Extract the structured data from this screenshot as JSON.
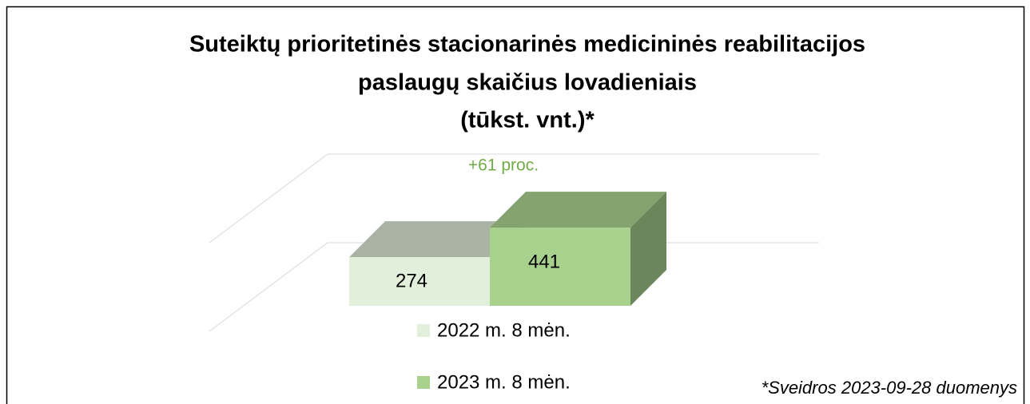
{
  "chart_data": {
    "type": "bar3d",
    "title": [
      "Suteiktų prioritetinės stacionarinės medicininės reabilitacijos",
      "paslaugų skaičius lovadieniais",
      "(tūkst. vnt.)*"
    ],
    "categories": [
      null
    ],
    "series": [
      {
        "name": "2022 m. 8 mėn.",
        "color": "#e2efda",
        "values": [
          274
        ]
      },
      {
        "name": "2023 m. 8 mėn.",
        "color": "#a9d18e",
        "values": [
          441
        ]
      }
    ],
    "ylim": [
      0,
      1000
    ],
    "yticks": [
      500,
      1000
    ],
    "grid": true,
    "legend": "bottom",
    "annotation": "+61 proc.",
    "footnote": "*Sveidros 2023-09-28 duomenys"
  }
}
